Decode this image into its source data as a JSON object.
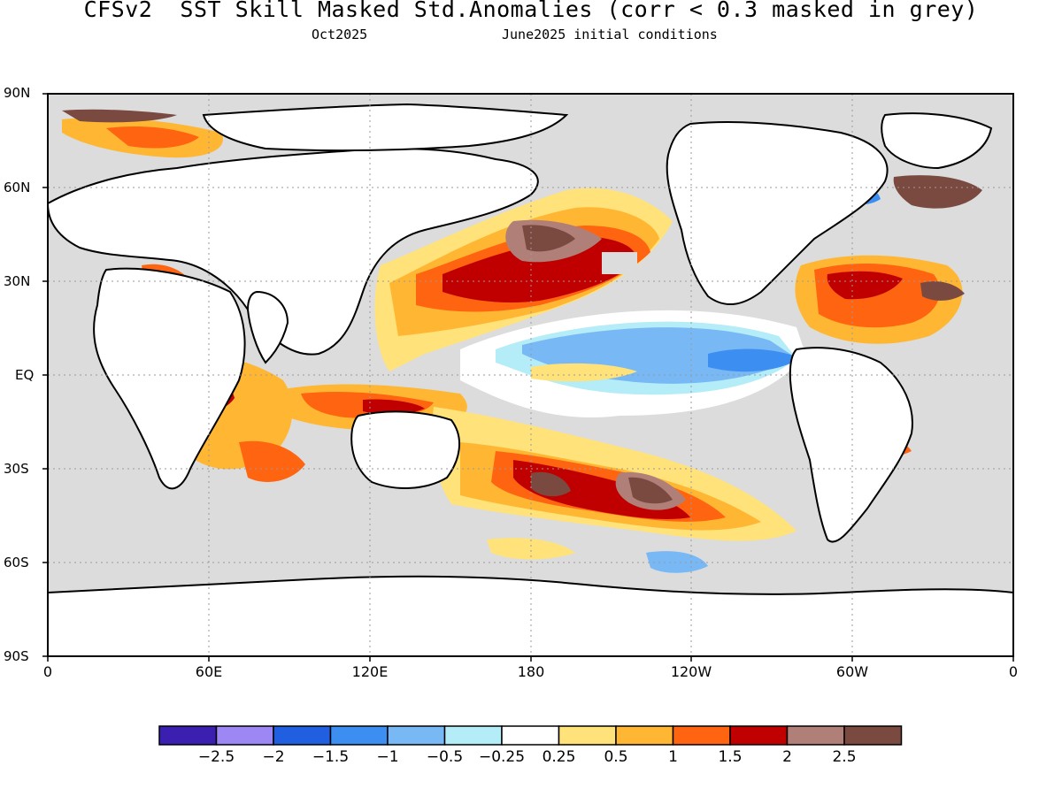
{
  "title": "CFSv2  SST Skill Masked Std.Anomalies (corr < 0.3 masked in grey)",
  "subtitle_left": "Oct2025",
  "subtitle_right": "June2025 initial conditions",
  "lat_labels": [
    "90N",
    "60N",
    "30N",
    "EQ",
    "30S",
    "60S",
    "90S"
  ],
  "lon_labels": [
    "0",
    "60E",
    "120E",
    "180",
    "120W",
    "60W",
    "0"
  ],
  "mask_color": "#dcdcdc",
  "land_color": "#ffffff",
  "colorbar": {
    "colors": [
      "#3b1fb0",
      "#9d87f5",
      "#1f5fe0",
      "#3c8ef0",
      "#78b8f5",
      "#b4ecf8",
      "#ffffff",
      "#ffe27a",
      "#ffb733",
      "#ff6410",
      "#c00000",
      "#b08078",
      "#7a4a40"
    ],
    "labels": [
      "−2.5",
      "−2",
      "−1.5",
      "−1",
      "−0.5",
      "−0.25",
      "0.25",
      "0.5",
      "1",
      "1.5",
      "2",
      "2.5"
    ]
  }
}
